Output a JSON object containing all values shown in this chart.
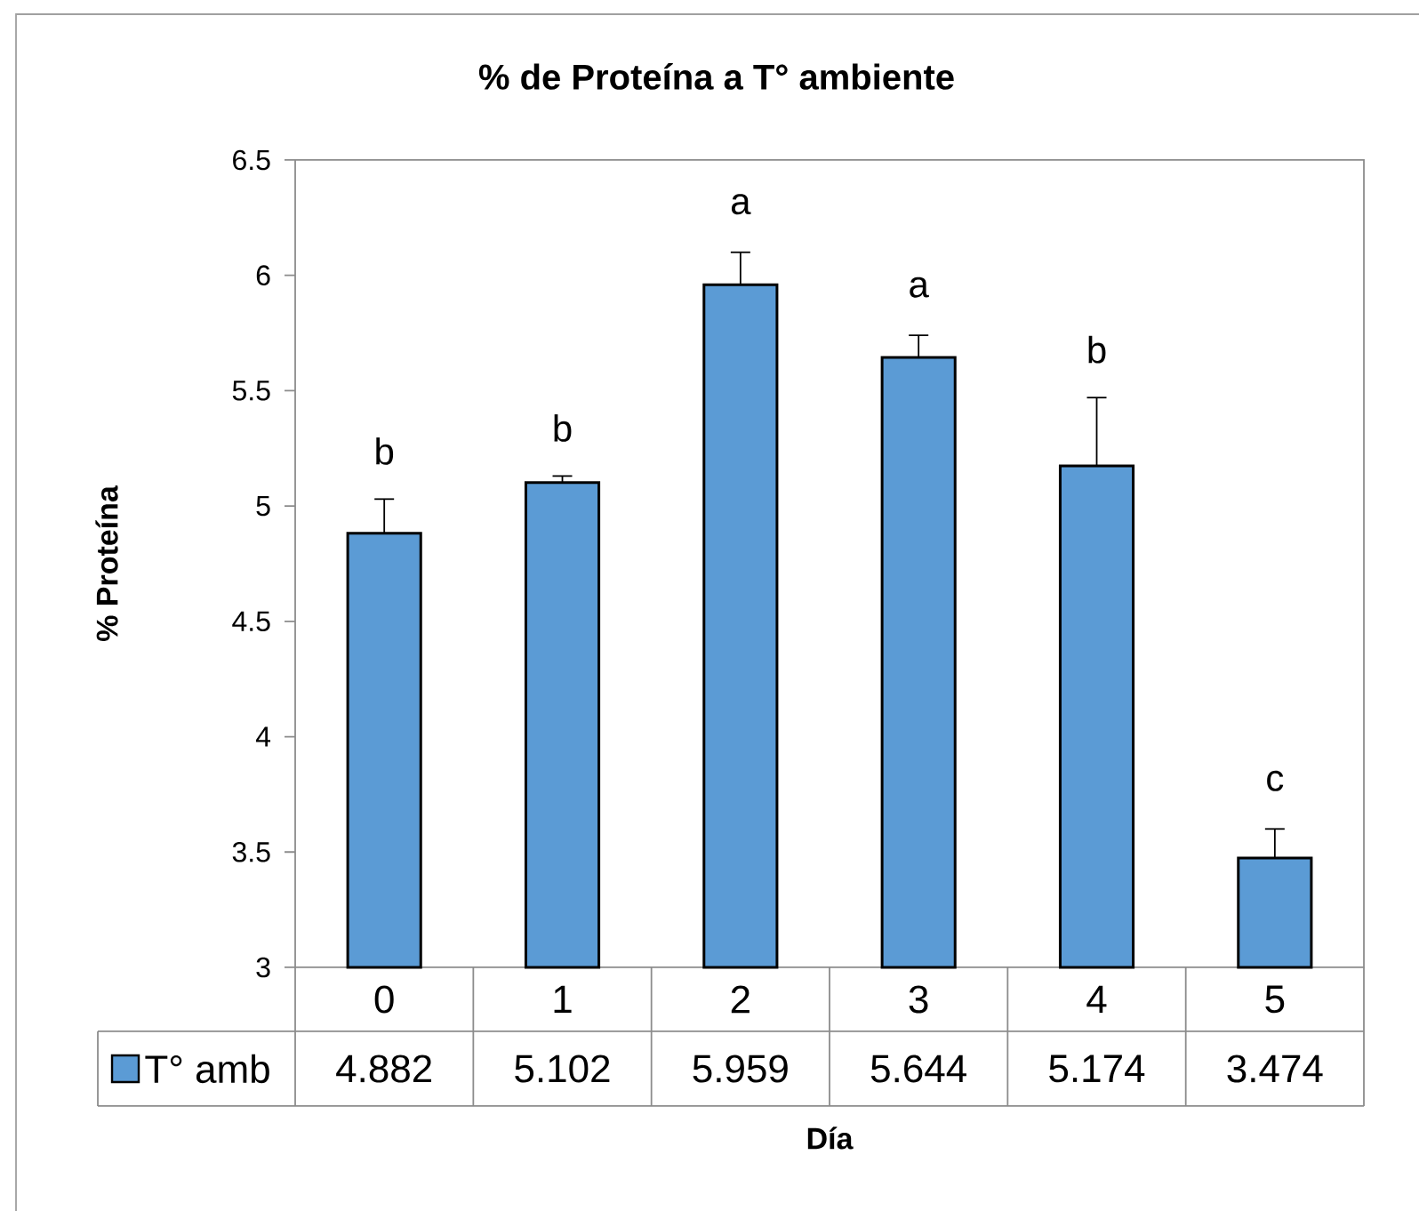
{
  "chart_data": {
    "type": "bar",
    "title": "% de Proteína a T° ambiente",
    "xlabel": "Día",
    "ylabel": "% Proteína",
    "categories": [
      "0",
      "1",
      "2",
      "3",
      "4",
      "5"
    ],
    "series": [
      {
        "name": "T° amb",
        "color": "#5b9bd5",
        "values": [
          4.882,
          5.102,
          5.959,
          5.644,
          5.174,
          3.474
        ],
        "errors": [
          [
            4.882,
            5.03
          ],
          [
            5.102,
            5.13
          ],
          [
            5.959,
            6.1
          ],
          [
            5.644,
            5.74
          ],
          [
            5.174,
            5.47
          ],
          [
            3.474,
            3.6
          ]
        ]
      }
    ],
    "ylim": [
      3,
      6.5
    ],
    "yticks": [
      3,
      3.5,
      4,
      4.5,
      5,
      5.5,
      6,
      6.5
    ],
    "annotations": [
      "b",
      "b",
      "a",
      "a",
      "b",
      "c"
    ],
    "data_labels": true,
    "legend": "bottom"
  }
}
